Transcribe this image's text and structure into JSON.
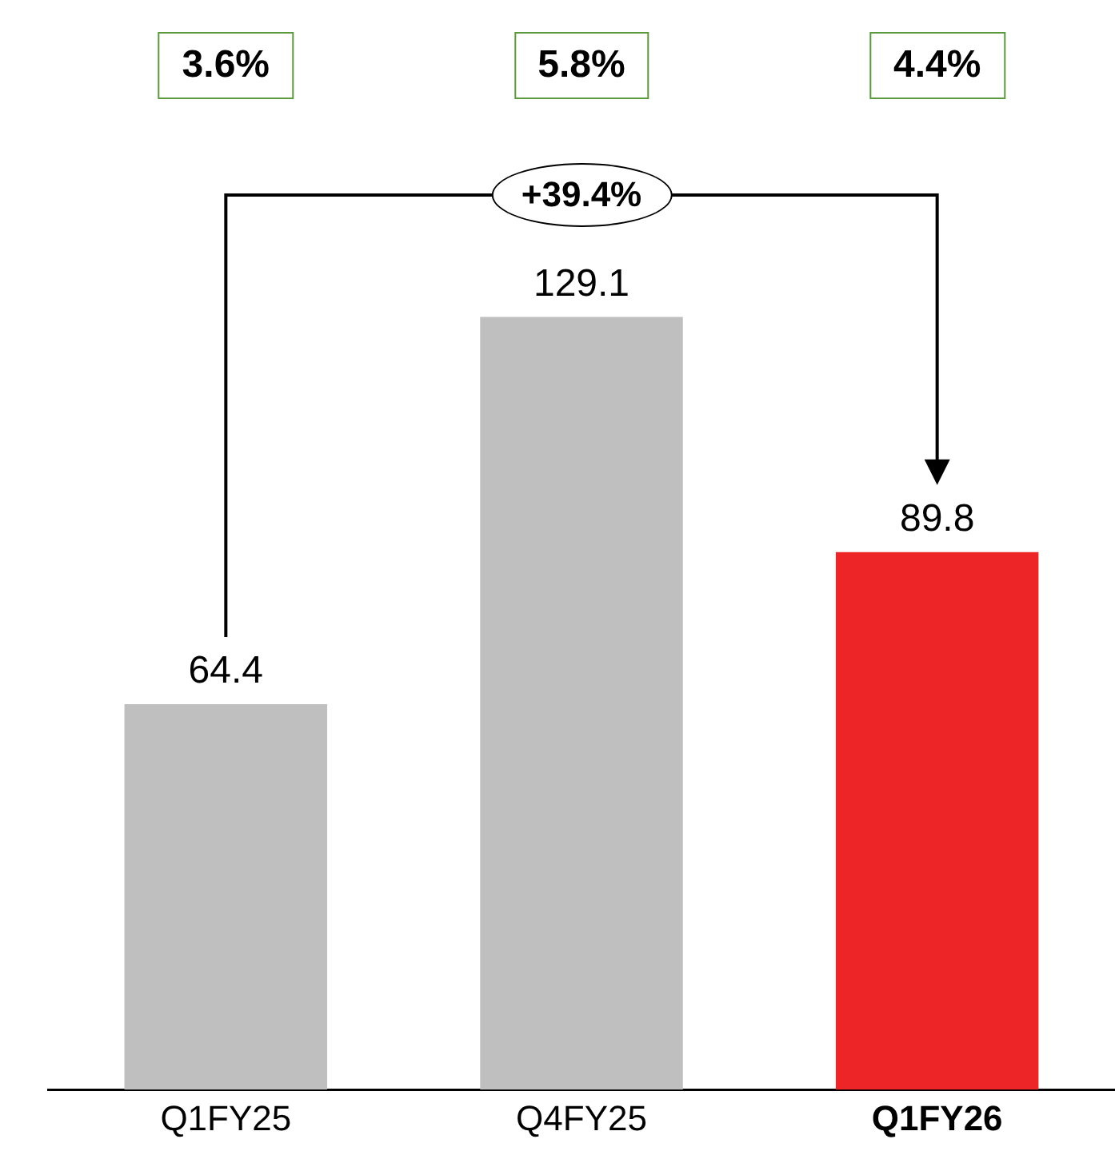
{
  "chart_data": {
    "type": "bar",
    "categories": [
      "Q1FY25",
      "Q4FY25",
      "Q1FY26"
    ],
    "values": [
      64.4,
      129.1,
      89.8
    ],
    "colors": [
      "#bfbfbf",
      "#bfbfbf",
      "#ee2526"
    ],
    "data_labels": true,
    "grid": false,
    "legend": false,
    "tick_labels": "x",
    "annotations": [
      "3.6%",
      "5.8%",
      "4.4%",
      "+39.4%"
    ]
  }
}
